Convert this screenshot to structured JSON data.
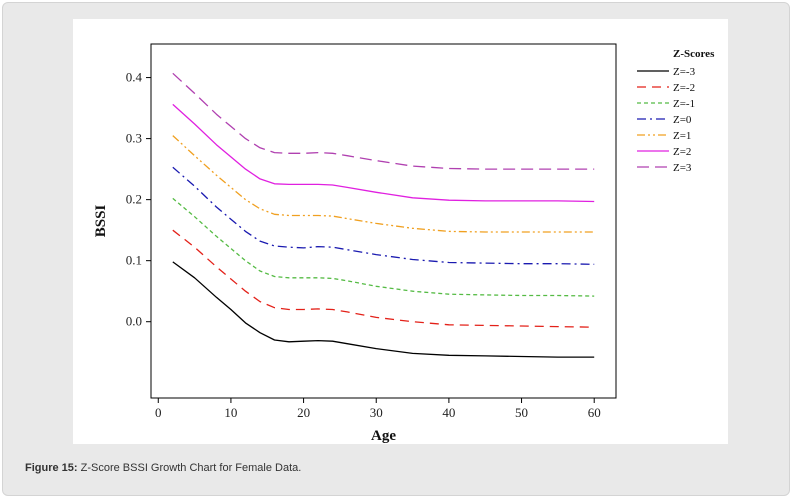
{
  "caption": {
    "label": "Figure 15:",
    "text": " Z-Score BSSI Growth Chart for Female Data."
  },
  "chart_data": {
    "type": "line",
    "title": "",
    "xlabel": "Age",
    "ylabel": "BSSI",
    "xlim": [
      -1,
      63
    ],
    "ylim": [
      -0.125,
      0.455
    ],
    "xticks": [
      0,
      10,
      20,
      30,
      40,
      50,
      60
    ],
    "yticks": [
      0.0,
      0.1,
      0.2,
      0.3,
      0.4
    ],
    "ytick_labels": [
      "0.0",
      "0.1",
      "0.2",
      "0.3",
      "0.4"
    ],
    "grid": false,
    "legend": {
      "title": "Z-Scores",
      "placement": "right-outside"
    },
    "x": [
      2,
      5,
      8,
      10,
      12,
      14,
      16,
      18,
      20,
      22,
      24,
      26,
      30,
      35,
      40,
      45,
      50,
      55,
      60
    ],
    "series": [
      {
        "name": "Z=-3",
        "color": "#000000",
        "dash": "solid",
        "values": [
          0.098,
          0.072,
          0.04,
          0.02,
          -0.002,
          -0.018,
          -0.03,
          -0.033,
          -0.032,
          -0.031,
          -0.032,
          -0.036,
          -0.044,
          -0.052,
          -0.055,
          -0.056,
          -0.057,
          -0.058,
          -0.058
        ]
      },
      {
        "name": "Z=-2",
        "color": "#e32119",
        "dash": "dash",
        "values": [
          0.15,
          0.122,
          0.09,
          0.07,
          0.05,
          0.033,
          0.023,
          0.02,
          0.02,
          0.021,
          0.02,
          0.016,
          0.007,
          0.0,
          -0.005,
          -0.006,
          -0.007,
          -0.008,
          -0.009
        ]
      },
      {
        "name": "Z=-1",
        "color": "#55bb44",
        "dash": "shortdash",
        "values": [
          0.202,
          0.172,
          0.14,
          0.12,
          0.1,
          0.083,
          0.074,
          0.072,
          0.072,
          0.072,
          0.071,
          0.067,
          0.058,
          0.05,
          0.045,
          0.044,
          0.043,
          0.043,
          0.042
        ]
      },
      {
        "name": "Z=0",
        "color": "#1a1ab0",
        "dash": "dashdot",
        "values": [
          0.253,
          0.222,
          0.188,
          0.168,
          0.148,
          0.132,
          0.124,
          0.122,
          0.121,
          0.123,
          0.122,
          0.118,
          0.11,
          0.102,
          0.097,
          0.096,
          0.095,
          0.095,
          0.094
        ]
      },
      {
        "name": "Z=1",
        "color": "#f0a020",
        "dash": "dashdotdot",
        "values": [
          0.305,
          0.272,
          0.24,
          0.22,
          0.2,
          0.185,
          0.176,
          0.174,
          0.174,
          0.174,
          0.173,
          0.169,
          0.161,
          0.153,
          0.148,
          0.147,
          0.147,
          0.147,
          0.147
        ]
      },
      {
        "name": "Z=2",
        "color": "#e020e0",
        "dash": "solid",
        "values": [
          0.356,
          0.324,
          0.29,
          0.27,
          0.25,
          0.234,
          0.226,
          0.225,
          0.225,
          0.225,
          0.224,
          0.22,
          0.212,
          0.203,
          0.199,
          0.198,
          0.198,
          0.198,
          0.197
        ]
      },
      {
        "name": "Z=3",
        "color": "#b040b0",
        "dash": "longdash",
        "values": [
          0.407,
          0.374,
          0.34,
          0.32,
          0.3,
          0.285,
          0.277,
          0.276,
          0.276,
          0.277,
          0.276,
          0.272,
          0.264,
          0.255,
          0.251,
          0.25,
          0.25,
          0.25,
          0.25
        ]
      }
    ]
  }
}
